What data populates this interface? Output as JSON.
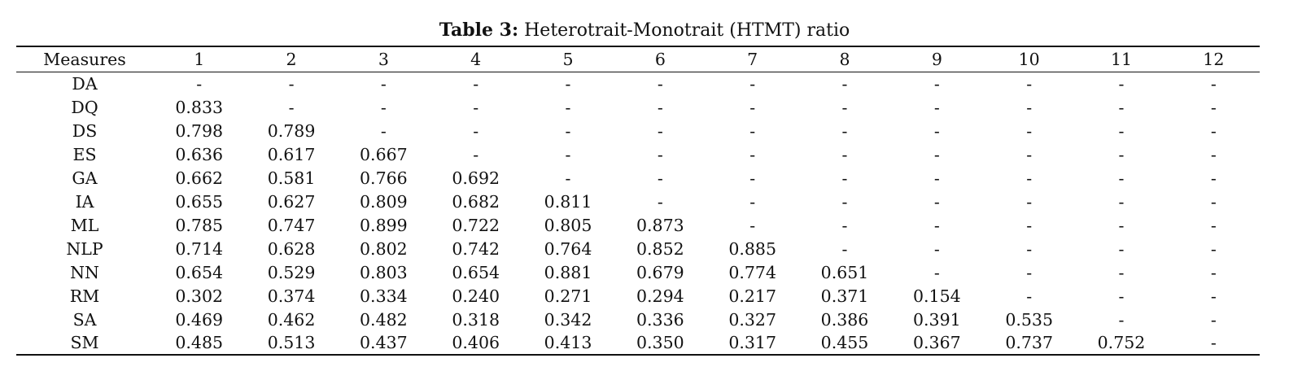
{
  "caption": {
    "label": "Table 3:",
    "title": "Heterotrait-Monotrait (HTMT) ratio"
  },
  "table": {
    "headers": [
      "Measures",
      "1",
      "2",
      "3",
      "4",
      "5",
      "6",
      "7",
      "8",
      "9",
      "10",
      "11",
      "12"
    ],
    "rows": [
      [
        "DA",
        "-",
        "-",
        "-",
        "-",
        "-",
        "-",
        "-",
        "-",
        "-",
        "-",
        "-",
        "-"
      ],
      [
        "DQ",
        "0.833",
        "-",
        "-",
        "-",
        "-",
        "-",
        "-",
        "-",
        "-",
        "-",
        "-",
        "-"
      ],
      [
        "DS",
        "0.798",
        "0.789",
        "-",
        "-",
        "-",
        "-",
        "-",
        "-",
        "-",
        "-",
        "-",
        "-"
      ],
      [
        "ES",
        "0.636",
        "0.617",
        "0.667",
        "-",
        "-",
        "-",
        "-",
        "-",
        "-",
        "-",
        "-",
        "-"
      ],
      [
        "GA",
        "0.662",
        "0.581",
        "0.766",
        "0.692",
        "-",
        "-",
        "-",
        "-",
        "-",
        "-",
        "-",
        "-"
      ],
      [
        "IA",
        "0.655",
        "0.627",
        "0.809",
        "0.682",
        "0.811",
        "-",
        "-",
        "-",
        "-",
        "-",
        "-",
        "-"
      ],
      [
        "ML",
        "0.785",
        "0.747",
        "0.899",
        "0.722",
        "0.805",
        "0.873",
        "-",
        "-",
        "-",
        "-",
        "-",
        "-"
      ],
      [
        "NLP",
        "0.714",
        "0.628",
        "0.802",
        "0.742",
        "0.764",
        "0.852",
        "0.885",
        "-",
        "-",
        "-",
        "-",
        "-"
      ],
      [
        "NN",
        "0.654",
        "0.529",
        "0.803",
        "0.654",
        "0.881",
        "0.679",
        "0.774",
        "0.651",
        "-",
        "-",
        "-",
        "-"
      ],
      [
        "RM",
        "0.302",
        "0.374",
        "0.334",
        "0.240",
        "0.271",
        "0.294",
        "0.217",
        "0.371",
        "0.154",
        "-",
        "-",
        "-"
      ],
      [
        "SA",
        "0.469",
        "0.462",
        "0.482",
        "0.318",
        "0.342",
        "0.336",
        "0.327",
        "0.386",
        "0.391",
        "0.535",
        "-",
        "-"
      ],
      [
        "SM",
        "0.485",
        "0.513",
        "0.437",
        "0.406",
        "0.413",
        "0.350",
        "0.317",
        "0.455",
        "0.367",
        "0.737",
        "0.752",
        "-"
      ]
    ]
  }
}
